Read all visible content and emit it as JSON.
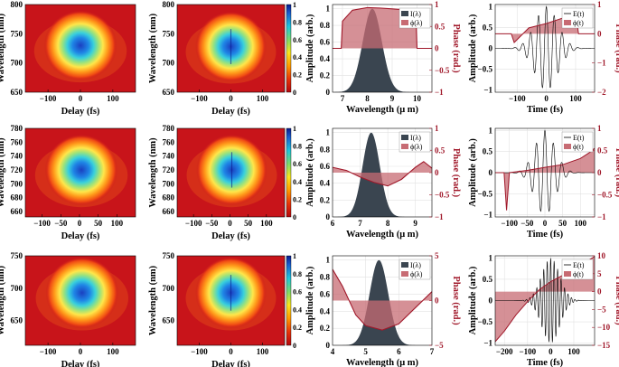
{
  "colors": {
    "amplitude_fill": "#3a4550",
    "phase_fill": "#c76b73",
    "phase_line": "#a0182a",
    "field_line": "#000000",
    "heatmap_bg": "#c8141a"
  },
  "chart_data": [
    {
      "type": "heatmap",
      "row": 0,
      "col": 0,
      "xlabel": "Delay (fs)",
      "ylabel": "Wavelength (nm)",
      "xticks": [
        "-100",
        "0",
        "100"
      ],
      "yticks": [
        "650",
        "700",
        "750",
        "800"
      ],
      "xlim": [
        -170,
        170
      ],
      "ylim": [
        650,
        800
      ],
      "center": [
        0,
        730
      ],
      "variant": "measured"
    },
    {
      "type": "heatmap",
      "row": 0,
      "col": 1,
      "xlabel": "Delay (fs)",
      "ylabel": "Wavelength (nm)",
      "xticks": [
        "-100",
        "0",
        "100"
      ],
      "yticks": [
        "650",
        "700",
        "750",
        "800"
      ],
      "xlim": [
        -170,
        170
      ],
      "ylim": [
        650,
        800
      ],
      "center": [
        0,
        728
      ],
      "variant": "retrieved",
      "colorbar": [
        "1",
        "0.8",
        "0.6",
        "0.4",
        "0.2",
        "0"
      ]
    },
    {
      "type": "area",
      "row": 0,
      "col": 2,
      "xlabel": "Wavelength (μ m)",
      "ylabel": "Amplitude (arb.)",
      "y2label": "Phase (rad.)",
      "xticks": [
        "7",
        "8",
        "9",
        "10"
      ],
      "yticks": [
        "0",
        "0.2",
        "0.4",
        "0.6",
        "0.8",
        "1"
      ],
      "y2ticks": [
        "-1",
        "-0.5",
        "0",
        "0.5",
        "1"
      ],
      "xlim": [
        6.6,
        10.6
      ],
      "ylim": [
        0,
        1.05
      ],
      "y2lim": [
        -1,
        1
      ],
      "legend": [
        "I(λ)",
        "ϕ(λ)"
      ],
      "intensity_peak": 8.2,
      "intensity_width": 0.52,
      "phase_x": [
        6.6,
        6.95,
        7.0,
        7.4,
        8.0,
        8.5,
        9.0,
        9.5,
        9.95,
        10.0,
        10.6
      ],
      "phase_y": [
        0,
        0,
        0.62,
        0.87,
        0.93,
        0.92,
        0.9,
        0.88,
        0.82,
        0,
        0
      ]
    },
    {
      "type": "line",
      "row": 0,
      "col": 3,
      "xlabel": "Time (fs)",
      "ylabel": "Amplitude (arb.)",
      "y2label": "Phase (rad.)",
      "xticks": [
        "-100",
        "0",
        "100"
      ],
      "yticks": [
        "-1",
        "-0.5",
        "0",
        "0.5",
        "1"
      ],
      "y2ticks": [
        "-2",
        "-1",
        "0",
        "1"
      ],
      "xlim": [
        -175,
        165
      ],
      "ylim": [
        -1.05,
        1.05
      ],
      "y2lim": [
        -2,
        1
      ],
      "legend": [
        "E(t)",
        "ϕ(t)"
      ],
      "envelope_width": 55,
      "carrier_period": 27,
      "phase_x": [
        -175,
        -120,
        -110,
        -60,
        0,
        60,
        100,
        110,
        165
      ],
      "phase_y": [
        0,
        0,
        -0.3,
        0.2,
        0.35,
        0.55,
        0.75,
        0,
        0
      ]
    },
    {
      "type": "heatmap",
      "row": 1,
      "col": 0,
      "xlabel": "Delay (fs)",
      "ylabel": "Wavelength (nm)",
      "xticks": [
        "-100",
        "-50",
        "0",
        "50",
        "100"
      ],
      "yticks": [
        "660",
        "680",
        "700",
        "720",
        "740",
        "760",
        "780"
      ],
      "xlim": [
        -145,
        150
      ],
      "ylim": [
        652,
        780
      ],
      "center": [
        5,
        720
      ],
      "variant": "measured"
    },
    {
      "type": "heatmap",
      "row": 1,
      "col": 1,
      "xlabel": "Delay (fs)",
      "ylabel": "Wavelength (nm)",
      "xticks": [
        "-100",
        "-50",
        "0",
        "50",
        "100"
      ],
      "yticks": [
        "660",
        "680",
        "700",
        "720",
        "740",
        "760",
        "780"
      ],
      "xlim": [
        -145,
        150
      ],
      "ylim": [
        652,
        780
      ],
      "center": [
        5,
        720
      ],
      "variant": "retrieved",
      "colorbar": [
        "1",
        "0.8",
        "0.6",
        "0.4",
        "0.2",
        "0"
      ]
    },
    {
      "type": "area",
      "row": 1,
      "col": 2,
      "xlabel": "Wavelength (μ m)",
      "ylabel": "Amplitude (arb.)",
      "y2label": "Phase (rad.)",
      "xticks": [
        "6",
        "7",
        "8",
        "9"
      ],
      "yticks": [
        "0",
        "0.2",
        "0.4",
        "0.6",
        "0.8",
        "1"
      ],
      "y2ticks": [
        "-1",
        "-0.5",
        "0",
        "0.5",
        "1"
      ],
      "xlim": [
        6,
        9.6
      ],
      "ylim": [
        0,
        1.05
      ],
      "y2lim": [
        -1,
        1
      ],
      "legend": [
        "I(λ)",
        "ϕ(λ)"
      ],
      "intensity_peak": 7.4,
      "intensity_width": 0.42,
      "phase_x": [
        6,
        6.5,
        7.0,
        7.5,
        8.0,
        8.5,
        9.0,
        9.3,
        9.6
      ],
      "phase_y": [
        0.12,
        0.05,
        -0.1,
        -0.22,
        -0.3,
        -0.15,
        0.12,
        0.25,
        0.1
      ]
    },
    {
      "type": "line",
      "row": 1,
      "col": 3,
      "xlabel": "Time (fs)",
      "ylabel": "Amplitude (arb.)",
      "y2label": "Phase (rad.)",
      "xticks": [
        "-100",
        "-50",
        "0",
        "50",
        "100"
      ],
      "yticks": [
        "-1",
        "-0.5",
        "0",
        "0.5",
        "1"
      ],
      "y2ticks": [
        "-1",
        "-0.5",
        "0",
        "0.5",
        "1"
      ],
      "xlim": [
        -140,
        140
      ],
      "ylim": [
        -1.05,
        1.05
      ],
      "y2lim": [
        -1,
        1
      ],
      "legend": [
        "E(t)",
        "ϕ(t)"
      ],
      "envelope_width": 40,
      "carrier_period": 24,
      "phase_x": [
        -140,
        -115,
        -108,
        -100,
        -50,
        0,
        50,
        100,
        125,
        140
      ],
      "phase_y": [
        0,
        0,
        -0.85,
        0,
        0.05,
        0.12,
        0.18,
        0.32,
        0.45,
        0.55
      ]
    },
    {
      "type": "heatmap",
      "row": 2,
      "col": 0,
      "xlabel": "Delay (fs)",
      "ylabel": "Wavelength (nm)",
      "xticks": [
        "-100",
        "0",
        "100"
      ],
      "yticks": [
        "650",
        "700",
        "750"
      ],
      "xlim": [
        -170,
        170
      ],
      "ylim": [
        612,
        750
      ],
      "center": [
        5,
        693
      ],
      "variant": "measured"
    },
    {
      "type": "heatmap",
      "row": 2,
      "col": 1,
      "xlabel": "Delay (fs)",
      "ylabel": "Wavelength (nm)",
      "xticks": [
        "-100",
        "0",
        "100"
      ],
      "yticks": [
        "650",
        "700",
        "750"
      ],
      "xlim": [
        -170,
        170
      ],
      "ylim": [
        612,
        750
      ],
      "center": [
        0,
        693
      ],
      "variant": "retrieved",
      "colorbar": [
        "1",
        "0.8",
        "0.6",
        "0.4",
        "0.2",
        "0"
      ]
    },
    {
      "type": "area",
      "row": 2,
      "col": 2,
      "xlabel": "Wavelength (μ m)",
      "ylabel": "Amplitude (arb.)",
      "y2label": "Phase (rad.)",
      "xticks": [
        "4",
        "5",
        "6",
        "7"
      ],
      "yticks": [
        "0",
        "0.2",
        "0.4",
        "0.6",
        "0.8",
        "1"
      ],
      "y2ticks": [
        "-5",
        "0",
        "5"
      ],
      "xlim": [
        4,
        7
      ],
      "ylim": [
        0,
        1.05
      ],
      "y2lim": [
        -5,
        5
      ],
      "legend": [
        "I(λ)",
        "ϕ(λ)"
      ],
      "intensity_peak": 5.4,
      "intensity_width": 0.38,
      "phase_x": [
        4,
        4.3,
        4.7,
        5.0,
        5.5,
        6.0,
        6.5,
        7.0
      ],
      "phase_y": [
        3.5,
        1.6,
        -1.6,
        -2.8,
        -3.3,
        -2.6,
        -0.8,
        1.0
      ]
    },
    {
      "type": "line",
      "row": 2,
      "col": 3,
      "xlabel": "Time (fs)",
      "ylabel": "Amplitude (arb.)",
      "y2label": "Phase (rad.)",
      "xticks": [
        "-200",
        "-100",
        "0",
        "100"
      ],
      "yticks": [
        "-1",
        "-0.5",
        "0",
        "0.5",
        "1"
      ],
      "y2ticks": [
        "-15",
        "-10",
        "-5",
        "0",
        "5",
        "10"
      ],
      "xlim": [
        -240,
        190
      ],
      "ylim": [
        -1.05,
        1.05
      ],
      "y2lim": [
        -15,
        10
      ],
      "legend": [
        "E(t)",
        "ϕ(t)"
      ],
      "envelope_width": 55,
      "carrier_period": 15,
      "phase_x": [
        -240,
        -200,
        -150,
        -100,
        -50,
        0,
        50,
        100,
        150,
        190
      ],
      "phase_y": [
        -14,
        -11,
        -6.5,
        -2.8,
        0.5,
        2.8,
        4.5,
        6.2,
        8.2,
        9.8
      ]
    }
  ]
}
